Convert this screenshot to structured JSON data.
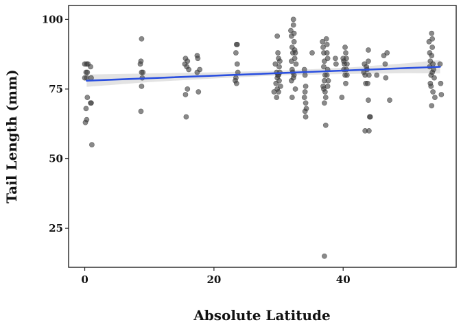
{
  "chart_data": {
    "type": "scatter",
    "title": "",
    "xlabel": "Absolute Latitude",
    "ylabel": "Tail Length (mm)",
    "xlim": [
      -2.5,
      57.5
    ],
    "ylim": [
      11,
      105
    ],
    "x_ticks": [
      0,
      20,
      40
    ],
    "y_ticks": [
      25,
      50,
      75,
      100
    ],
    "grid": false,
    "colors": {
      "points": "#404040",
      "trend": "#2a4fe0",
      "ci_band": "#d9d9d9",
      "frame": "#222222"
    },
    "trend_line": {
      "x": [
        0.3,
        55.0
      ],
      "y": [
        78.0,
        83.0
      ]
    },
    "ci_band": {
      "x": [
        0.3,
        10,
        20,
        30,
        40,
        50,
        55.0
      ],
      "lower": [
        75.8,
        77.5,
        78.8,
        79.9,
        80.4,
        80.7,
        80.6
      ],
      "upper": [
        80.2,
        80.6,
        81.0,
        81.6,
        82.6,
        84.3,
        85.4
      ]
    },
    "points": [
      {
        "x": 0.0,
        "y": 84
      },
      {
        "x": 0.3,
        "y": 84
      },
      {
        "x": 0.5,
        "y": 84
      },
      {
        "x": 0.2,
        "y": 81
      },
      {
        "x": 0.4,
        "y": 81
      },
      {
        "x": 0.0,
        "y": 79
      },
      {
        "x": 0.3,
        "y": 79
      },
      {
        "x": 0.4,
        "y": 72
      },
      {
        "x": 0.2,
        "y": 68
      },
      {
        "x": 0.3,
        "y": 64
      },
      {
        "x": 0.1,
        "y": 63
      },
      {
        "x": 0.9,
        "y": 83
      },
      {
        "x": 1.0,
        "y": 79
      },
      {
        "x": 1.0,
        "y": 70
      },
      {
        "x": 0.9,
        "y": 70
      },
      {
        "x": 1.1,
        "y": 55
      },
      {
        "x": 8.8,
        "y": 93
      },
      {
        "x": 8.7,
        "y": 85
      },
      {
        "x": 8.6,
        "y": 84
      },
      {
        "x": 8.8,
        "y": 81
      },
      {
        "x": 9.0,
        "y": 81
      },
      {
        "x": 8.9,
        "y": 79
      },
      {
        "x": 8.8,
        "y": 76
      },
      {
        "x": 8.7,
        "y": 67
      },
      {
        "x": 15.6,
        "y": 86
      },
      {
        "x": 15.9,
        "y": 85
      },
      {
        "x": 15.5,
        "y": 84
      },
      {
        "x": 15.8,
        "y": 83
      },
      {
        "x": 16.1,
        "y": 82
      },
      {
        "x": 15.9,
        "y": 75
      },
      {
        "x": 15.6,
        "y": 73
      },
      {
        "x": 15.7,
        "y": 65
      },
      {
        "x": 17.4,
        "y": 87
      },
      {
        "x": 17.5,
        "y": 86
      },
      {
        "x": 17.8,
        "y": 82
      },
      {
        "x": 17.4,
        "y": 81
      },
      {
        "x": 17.6,
        "y": 74
      },
      {
        "x": 23.5,
        "y": 91
      },
      {
        "x": 23.6,
        "y": 91
      },
      {
        "x": 23.4,
        "y": 88
      },
      {
        "x": 23.6,
        "y": 84
      },
      {
        "x": 23.7,
        "y": 81
      },
      {
        "x": 23.4,
        "y": 79
      },
      {
        "x": 23.3,
        "y": 78
      },
      {
        "x": 23.5,
        "y": 77
      },
      {
        "x": 29.3,
        "y": 74
      },
      {
        "x": 29.6,
        "y": 77
      },
      {
        "x": 29.5,
        "y": 84
      },
      {
        "x": 29.7,
        "y": 81
      },
      {
        "x": 29.8,
        "y": 79
      },
      {
        "x": 29.8,
        "y": 94
      },
      {
        "x": 29.9,
        "y": 88
      },
      {
        "x": 29.9,
        "y": 80
      },
      {
        "x": 29.8,
        "y": 75
      },
      {
        "x": 29.7,
        "y": 72
      },
      {
        "x": 30.0,
        "y": 86
      },
      {
        "x": 30.1,
        "y": 83
      },
      {
        "x": 30.0,
        "y": 80
      },
      {
        "x": 30.1,
        "y": 78
      },
      {
        "x": 30.0,
        "y": 74
      },
      {
        "x": 30.2,
        "y": 85
      },
      {
        "x": 30.2,
        "y": 81
      },
      {
        "x": 30.3,
        "y": 76
      },
      {
        "x": 31.9,
        "y": 96
      },
      {
        "x": 32.0,
        "y": 94
      },
      {
        "x": 32.1,
        "y": 90
      },
      {
        "x": 32.2,
        "y": 88
      },
      {
        "x": 32.0,
        "y": 85
      },
      {
        "x": 32.1,
        "y": 82
      },
      {
        "x": 32.3,
        "y": 100
      },
      {
        "x": 32.3,
        "y": 98
      },
      {
        "x": 32.4,
        "y": 95
      },
      {
        "x": 32.4,
        "y": 92
      },
      {
        "x": 32.5,
        "y": 89
      },
      {
        "x": 32.5,
        "y": 86
      },
      {
        "x": 32.2,
        "y": 81
      },
      {
        "x": 32.4,
        "y": 80
      },
      {
        "x": 32.0,
        "y": 78
      },
      {
        "x": 32.1,
        "y": 72
      },
      {
        "x": 32.6,
        "y": 88
      },
      {
        "x": 32.7,
        "y": 84
      },
      {
        "x": 32.6,
        "y": 75
      },
      {
        "x": 32.3,
        "y": 79
      },
      {
        "x": 34.0,
        "y": 82
      },
      {
        "x": 34.1,
        "y": 80
      },
      {
        "x": 34.2,
        "y": 76
      },
      {
        "x": 34.1,
        "y": 74
      },
      {
        "x": 34.0,
        "y": 72
      },
      {
        "x": 34.2,
        "y": 70
      },
      {
        "x": 34.3,
        "y": 68
      },
      {
        "x": 34.1,
        "y": 67
      },
      {
        "x": 34.2,
        "y": 65
      },
      {
        "x": 35.2,
        "y": 88
      },
      {
        "x": 36.8,
        "y": 92
      },
      {
        "x": 36.9,
        "y": 90
      },
      {
        "x": 37.0,
        "y": 88
      },
      {
        "x": 37.1,
        "y": 85
      },
      {
        "x": 37.0,
        "y": 83
      },
      {
        "x": 37.2,
        "y": 80
      },
      {
        "x": 37.1,
        "y": 78
      },
      {
        "x": 36.9,
        "y": 76
      },
      {
        "x": 37.0,
        "y": 75
      },
      {
        "x": 37.2,
        "y": 74
      },
      {
        "x": 37.3,
        "y": 72
      },
      {
        "x": 37.1,
        "y": 70
      },
      {
        "x": 37.4,
        "y": 93
      },
      {
        "x": 37.5,
        "y": 91
      },
      {
        "x": 37.5,
        "y": 88
      },
      {
        "x": 37.6,
        "y": 86
      },
      {
        "x": 37.6,
        "y": 82
      },
      {
        "x": 37.5,
        "y": 80
      },
      {
        "x": 37.7,
        "y": 78
      },
      {
        "x": 37.6,
        "y": 76
      },
      {
        "x": 37.3,
        "y": 62
      },
      {
        "x": 37.1,
        "y": 15
      },
      {
        "x": 38.8,
        "y": 86
      },
      {
        "x": 38.9,
        "y": 84
      },
      {
        "x": 39.8,
        "y": 72
      },
      {
        "x": 40.0,
        "y": 86
      },
      {
        "x": 40.1,
        "y": 85
      },
      {
        "x": 40.2,
        "y": 84
      },
      {
        "x": 40.1,
        "y": 82
      },
      {
        "x": 40.3,
        "y": 90
      },
      {
        "x": 40.4,
        "y": 88
      },
      {
        "x": 40.3,
        "y": 80
      },
      {
        "x": 40.5,
        "y": 86
      },
      {
        "x": 40.5,
        "y": 82
      },
      {
        "x": 40.4,
        "y": 77
      },
      {
        "x": 40.6,
        "y": 84
      },
      {
        "x": 40.6,
        "y": 80
      },
      {
        "x": 43.2,
        "y": 81
      },
      {
        "x": 43.3,
        "y": 84
      },
      {
        "x": 43.4,
        "y": 80
      },
      {
        "x": 43.5,
        "y": 77
      },
      {
        "x": 43.4,
        "y": 60
      },
      {
        "x": 43.6,
        "y": 83
      },
      {
        "x": 43.7,
        "y": 82
      },
      {
        "x": 43.9,
        "y": 89
      },
      {
        "x": 43.9,
        "y": 85
      },
      {
        "x": 44.0,
        "y": 80
      },
      {
        "x": 43.8,
        "y": 77
      },
      {
        "x": 43.9,
        "y": 71
      },
      {
        "x": 44.1,
        "y": 65
      },
      {
        "x": 44.2,
        "y": 65
      },
      {
        "x": 44.0,
        "y": 60
      },
      {
        "x": 45.2,
        "y": 80
      },
      {
        "x": 46.3,
        "y": 87
      },
      {
        "x": 46.5,
        "y": 84
      },
      {
        "x": 46.8,
        "y": 88
      },
      {
        "x": 46.6,
        "y": 79
      },
      {
        "x": 47.2,
        "y": 71
      },
      {
        "x": 53.3,
        "y": 92
      },
      {
        "x": 53.4,
        "y": 88
      },
      {
        "x": 53.5,
        "y": 85
      },
      {
        "x": 53.4,
        "y": 83
      },
      {
        "x": 53.6,
        "y": 80
      },
      {
        "x": 53.5,
        "y": 77
      },
      {
        "x": 53.7,
        "y": 95
      },
      {
        "x": 53.8,
        "y": 93
      },
      {
        "x": 53.8,
        "y": 90
      },
      {
        "x": 53.7,
        "y": 87
      },
      {
        "x": 53.9,
        "y": 84
      },
      {
        "x": 53.8,
        "y": 81
      },
      {
        "x": 53.6,
        "y": 76
      },
      {
        "x": 53.9,
        "y": 74
      },
      {
        "x": 54.0,
        "y": 82
      },
      {
        "x": 54.1,
        "y": 79
      },
      {
        "x": 53.7,
        "y": 69
      },
      {
        "x": 54.2,
        "y": 72
      },
      {
        "x": 55.0,
        "y": 84
      },
      {
        "x": 55.1,
        "y": 77
      },
      {
        "x": 55.2,
        "y": 73
      }
    ]
  }
}
